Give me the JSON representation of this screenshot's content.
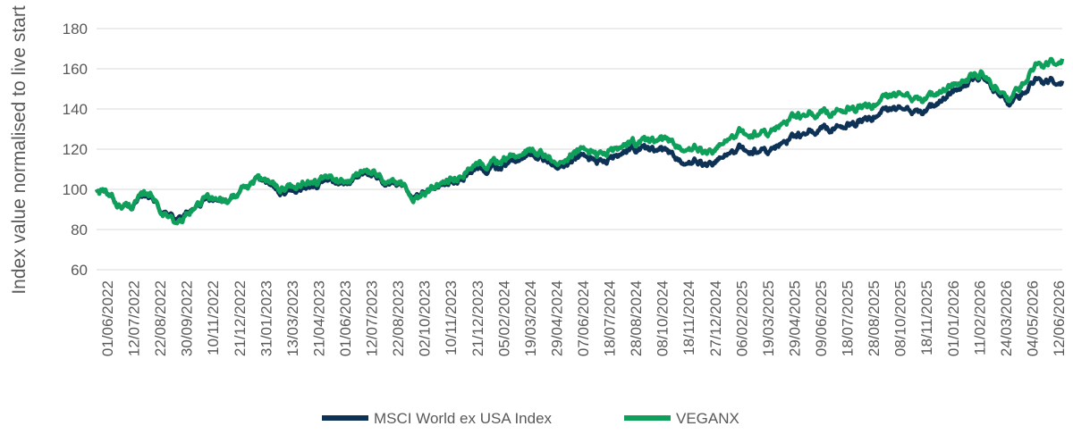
{
  "chart_data": {
    "type": "line",
    "ylabel": "Index value normalised to live start",
    "xlabel": "",
    "ylim": [
      60,
      180
    ],
    "yticks": [
      60,
      80,
      100,
      120,
      140,
      160,
      180
    ],
    "grid": "horizontal",
    "legend_position": "bottom",
    "x_tick_labels": [
      "01/06/2022",
      "12/07/2022",
      "22/08/2022",
      "30/09/2022",
      "10/11/2022",
      "21/12/2022",
      "31/01/2023",
      "13/03/2023",
      "21/04/2023",
      "01/06/2023",
      "12/07/2023",
      "22/08/2023",
      "02/10/2023",
      "10/11/2023",
      "21/12/2023",
      "05/02/2024",
      "19/03/2024",
      "29/04/2024",
      "07/06/2024",
      "18/07/2024",
      "28/08/2024",
      "08/10/2024",
      "18/11/2024",
      "27/12/2024",
      "06/02/2025",
      "19/03/2025",
      "29/04/2025",
      "09/06/2025",
      "18/07/2025",
      "28/08/2025",
      "08/10/2025",
      "18/11/2025",
      "01/01/2026",
      "11/02/2026",
      "24/03/2026",
      "04/05/2026",
      "12/06/2026"
    ],
    "x": [
      "01/06/2022",
      "12/07/2022",
      "22/08/2022",
      "30/09/2022",
      "10/11/2022",
      "21/12/2022",
      "31/01/2023",
      "13/03/2023",
      "21/04/2023",
      "01/06/2023",
      "12/07/2023",
      "22/08/2023",
      "02/10/2023",
      "10/11/2023",
      "21/12/2023",
      "05/02/2024",
      "19/03/2024",
      "29/04/2024",
      "07/06/2024",
      "18/07/2024",
      "28/08/2024",
      "08/10/2024",
      "18/11/2024",
      "27/12/2024",
      "06/02/2025",
      "19/03/2025",
      "29/04/2025",
      "09/06/2025",
      "18/07/2025",
      "28/08/2025",
      "08/10/2025",
      "18/11/2025",
      "01/01/2026",
      "11/02/2026",
      "24/03/2026",
      "04/05/2026",
      "12/06/2026"
    ],
    "series": [
      {
        "name": "MSCI World ex USA Index",
        "color": "#0d3256",
        "values": [
          100,
          91,
          96,
          84,
          94,
          96,
          104,
          99,
          102,
          104,
          107,
          102,
          97,
          102,
          110,
          111,
          118,
          113,
          116,
          114,
          120,
          119,
          114,
          113,
          120,
          119,
          126,
          130,
          132,
          137,
          140,
          139,
          149,
          157,
          142,
          153,
          154
        ]
      },
      {
        "name": "VEGANX",
        "color": "#0ea05a",
        "values": [
          100,
          91,
          97,
          82,
          95,
          96,
          104,
          101,
          104,
          105,
          108,
          103,
          96,
          103,
          112,
          114,
          120,
          115,
          119,
          118,
          123,
          124,
          121,
          119,
          128,
          128,
          136,
          138,
          140,
          143,
          147,
          145,
          152,
          158,
          144,
          160,
          165
        ]
      }
    ]
  }
}
